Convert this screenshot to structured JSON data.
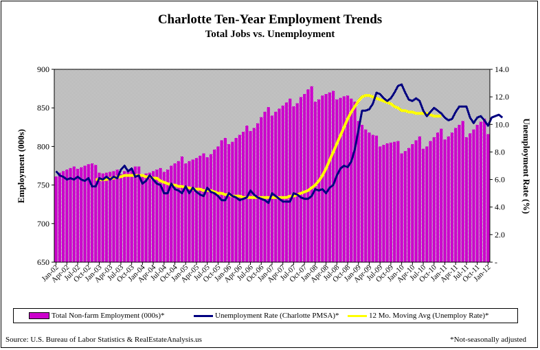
{
  "header": {
    "title": "Charlotte Ten-Year Employment Trends",
    "subtitle": "Total Jobs vs. Unemployment"
  },
  "footer": {
    "source": "Source: U.S. Bureau of Labor Statistics & RealEstateAnalysis.us",
    "note": "*Not-seasonally adjusted"
  },
  "chart_data": {
    "type": "bar",
    "ylabel": "Employment (000s)",
    "y2label": "Unemployment Rate (%)",
    "ylim": [
      650,
      900
    ],
    "y_ticks": [
      "650",
      "700",
      "750",
      "800",
      "850",
      "900"
    ],
    "y2lim": [
      0,
      14
    ],
    "y2_ticks": [
      "-",
      "2.0",
      "4.0",
      "6.0",
      "8.0",
      "10.0",
      "12.0",
      "14.0"
    ],
    "x_tick_labels": [
      "Jan-02",
      "Apr-02",
      "Jul-02",
      "Oct-02",
      "Jan-03",
      "Apr-03",
      "Jul-03",
      "Oct-03",
      "Jan-04",
      "Apr-04",
      "Jul-04",
      "Oct-04",
      "Jan-05",
      "Apr-05",
      "Jul-05",
      "Oct-05",
      "Jan-06",
      "Apr-06",
      "Jul-06",
      "Oct-06",
      "Jan-07",
      "Apr-07",
      "Jul-07",
      "Oct-07",
      "Jan-08",
      "Apr-08",
      "Jul-08",
      "Oct-08",
      "Jan-09",
      "Apr-09",
      "Jul-09",
      "Oct-09",
      "Jan-10",
      "Apr-10",
      "Jul-10",
      "Oct-10",
      "Jan-11",
      "Apr-11",
      "Jul-11",
      "Oct-11",
      "Jan-12"
    ],
    "colors": {
      "employment": "#cc00cc",
      "unemployment": "#000080",
      "moving_avg": "#ffff00",
      "plot_bg": "#c0c0c0"
    },
    "series": [
      {
        "name": "Total Non-farm Employment (000s)*",
        "type": "bar",
        "axis": "left",
        "values": [
          761,
          766,
          768,
          770,
          772,
          774,
          771,
          773,
          775,
          777,
          778,
          776,
          766,
          765,
          766,
          767,
          768,
          770,
          764,
          768,
          770,
          772,
          774,
          774,
          763,
          765,
          766,
          768,
          770,
          772,
          767,
          770,
          775,
          778,
          781,
          787,
          778,
          781,
          783,
          785,
          788,
          791,
          786,
          790,
          796,
          800,
          808,
          811,
          803,
          806,
          811,
          815,
          819,
          827,
          820,
          824,
          830,
          838,
          845,
          851,
          840,
          845,
          849,
          853,
          857,
          862,
          852,
          856,
          864,
          868,
          874,
          878,
          858,
          861,
          866,
          868,
          870,
          872,
          861,
          863,
          865,
          866,
          862,
          858,
          833,
          828,
          822,
          818,
          815,
          814,
          800,
          802,
          804,
          805,
          806,
          807,
          791,
          794,
          798,
          803,
          808,
          813,
          797,
          800,
          807,
          812,
          818,
          823,
          809,
          813,
          818,
          824,
          828,
          833,
          812,
          817,
          822,
          828,
          832,
          836,
          816
        ]
      },
      {
        "name": "Unemployment Rate (Charlotte PMSA)*",
        "type": "line",
        "axis": "right",
        "values": [
          6.6,
          6.3,
          6.2,
          6.0,
          6.1,
          6.0,
          6.2,
          6.0,
          5.9,
          6.1,
          5.5,
          5.5,
          6.1,
          6.0,
          6.2,
          6.0,
          6.2,
          6.1,
          6.7,
          7.0,
          6.6,
          6.8,
          6.2,
          6.3,
          5.7,
          5.9,
          6.3,
          6.0,
          5.7,
          5.6,
          5.0,
          5.0,
          5.7,
          5.3,
          5.2,
          5.0,
          5.5,
          5.0,
          5.4,
          5.1,
          4.9,
          4.8,
          5.4,
          5.1,
          5.0,
          4.8,
          4.5,
          4.5,
          5.0,
          4.8,
          4.7,
          4.5,
          4.6,
          4.7,
          5.2,
          4.9,
          4.7,
          4.6,
          4.5,
          4.3,
          5.0,
          4.8,
          4.6,
          4.4,
          4.4,
          4.4,
          5.0,
          4.9,
          4.7,
          4.6,
          4.6,
          4.8,
          5.3,
          5.2,
          5.3,
          5.0,
          5.4,
          5.6,
          6.3,
          6.8,
          7.0,
          6.9,
          7.3,
          8.2,
          9.6,
          11.0,
          11.0,
          11.1,
          11.5,
          12.3,
          12.2,
          11.9,
          11.7,
          11.9,
          12.3,
          12.8,
          12.9,
          12.3,
          11.8,
          11.7,
          11.9,
          11.7,
          11.0,
          10.6,
          10.9,
          11.2,
          11.0,
          10.8,
          10.5,
          10.3,
          10.4,
          10.9,
          11.3,
          11.3,
          11.3,
          10.5,
          10.1,
          10.5,
          10.6,
          10.3,
          9.9,
          10.5,
          10.6,
          10.7,
          10.5
        ]
      },
      {
        "name": "12 Mo. Moving Avg (Unemploy Rate)*",
        "type": "line",
        "axis": "right",
        "start_index": 11,
        "values": [
          6.0,
          6.0,
          6.0,
          6.0,
          6.1,
          6.1,
          6.2,
          6.2,
          6.3,
          6.3,
          6.3,
          6.3,
          6.3,
          6.3,
          6.2,
          6.2,
          6.1,
          6.1,
          5.9,
          5.8,
          5.7,
          5.6,
          5.6,
          5.5,
          5.5,
          5.4,
          5.4,
          5.3,
          5.3,
          5.3,
          5.2,
          5.2,
          5.2,
          5.1,
          5.0,
          5.0,
          4.9,
          4.9,
          4.8,
          4.8,
          4.8,
          4.7,
          4.7,
          4.7,
          4.7,
          4.7,
          4.7,
          4.7,
          4.7,
          4.7,
          4.7,
          4.7,
          4.7,
          4.7,
          4.8,
          4.8,
          4.9,
          5.0,
          5.1,
          5.2,
          5.4,
          5.6,
          5.9,
          6.3,
          6.8,
          7.4,
          8.0,
          8.6,
          9.2,
          9.8,
          10.4,
          10.9,
          11.3,
          11.7,
          12.0,
          12.1,
          12.1,
          12.0,
          11.9,
          11.8,
          11.7,
          11.6,
          11.5,
          11.3,
          11.2,
          11.0,
          11.0,
          10.9,
          10.9,
          10.8,
          10.8,
          10.8,
          10.8,
          10.7,
          10.6,
          10.6,
          10.6
        ]
      }
    ]
  }
}
